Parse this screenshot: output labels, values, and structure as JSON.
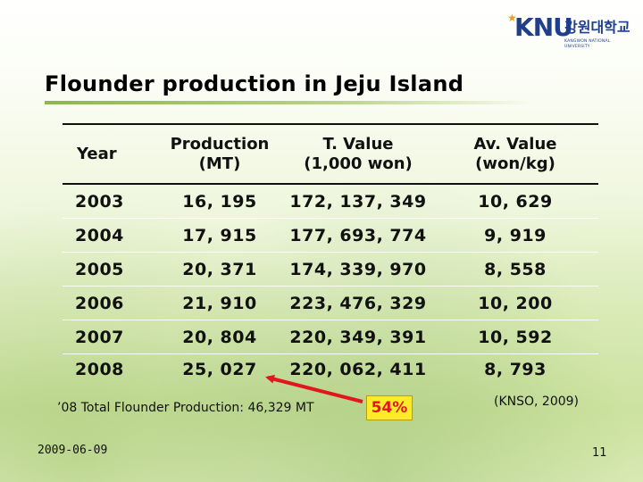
{
  "logo": {
    "brand": "KNU",
    "korean": "강원대학교",
    "english": "KANGWON NATIONAL UNIVERSITY",
    "colors": {
      "blue": "#1f3f8c",
      "orange": "#f29b1f"
    }
  },
  "slide": {
    "title": "Flounder production in Jeju Island",
    "table": {
      "headers": [
        {
          "line1": "Year",
          "line2": ""
        },
        {
          "line1": "Production",
          "line2": "(MT)"
        },
        {
          "line1": "T. Value",
          "line2": "(1,000 won)"
        },
        {
          "line1": "Av. Value",
          "line2": "(won/kg)"
        }
      ],
      "rows": [
        {
          "year": "2003",
          "production": "16, 195",
          "total_value": "172, 137, 349",
          "avg_value": "10, 629"
        },
        {
          "year": "2004",
          "production": "17, 915",
          "total_value": "177, 693, 774",
          "avg_value": "9, 919"
        },
        {
          "year": "2005",
          "production": "20, 371",
          "total_value": "174, 339, 970",
          "avg_value": "8, 558"
        },
        {
          "year": "2006",
          "production": "21, 910",
          "total_value": "223, 476, 329",
          "avg_value": "10, 200"
        },
        {
          "year": "2007",
          "production": "20, 804",
          "total_value": "220, 349, 391",
          "avg_value": "10, 592"
        },
        {
          "year": "2008",
          "production": "25, 027",
          "total_value": "220, 062, 411",
          "avg_value": "8, 793"
        }
      ]
    },
    "total_note": "’08 Total Flounder Production: 46,329 MT",
    "share_badge": "54%",
    "source": "(KNSO, 2009)",
    "date": "2009-06-09",
    "page_number": "11"
  },
  "colors": {
    "accent_line": "#8cb84a",
    "arrow": "#e0171e",
    "badge_fill": "#ffeb2a",
    "badge_text": "#e0171e"
  }
}
